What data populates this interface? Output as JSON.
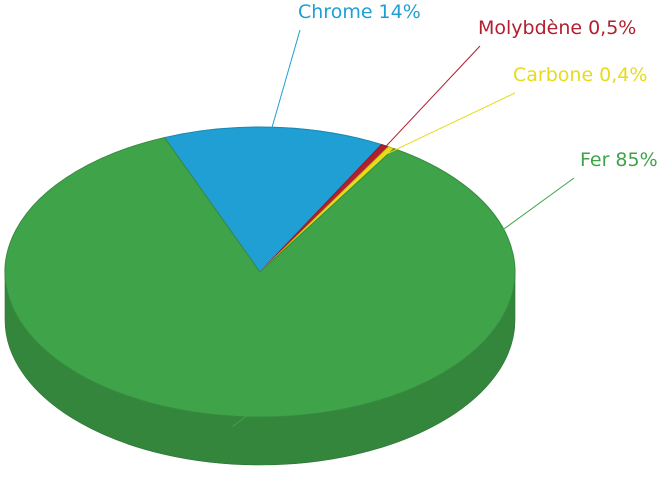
{
  "chart_data": {
    "type": "pie",
    "categories": [
      "Chrome",
      "Molybdène",
      "Carbone",
      "Fer"
    ],
    "values": [
      14,
      0.5,
      0.4,
      85
    ],
    "value_labels": [
      "14%",
      "0,5%",
      "0,4%",
      "85%"
    ],
    "colors": [
      "#1f9fd4",
      "#b21f2f",
      "#e6dc1c",
      "#3fa34a"
    ]
  }
}
